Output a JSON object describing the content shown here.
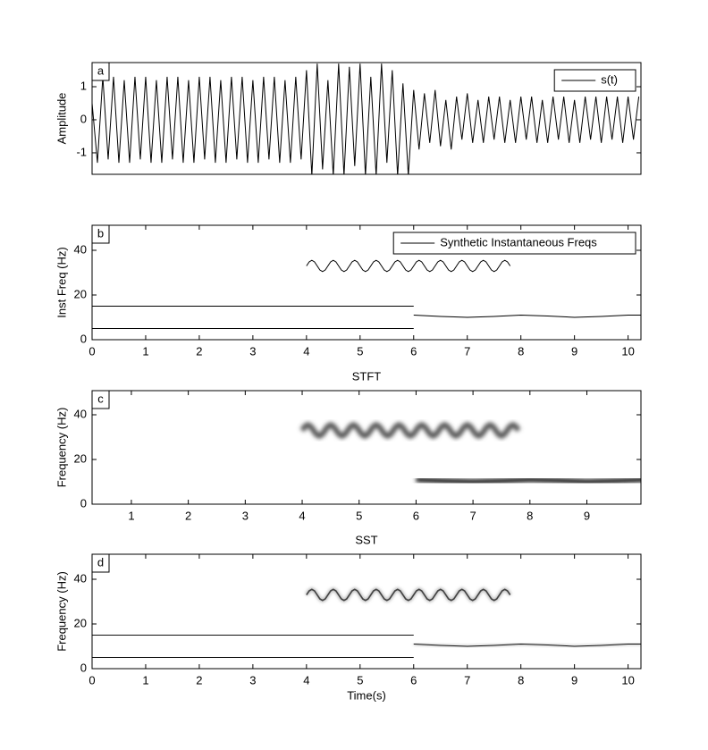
{
  "chart_data": [
    {
      "type": "line",
      "panel_label": "a",
      "ylabel": "Amplitude",
      "x": [
        0,
        0.1,
        0.2,
        0.3,
        0.4,
        0.5,
        0.6,
        0.7,
        0.8,
        0.9,
        1,
        1.1,
        1.2,
        1.3,
        1.4,
        1.5,
        1.6,
        1.7,
        1.8,
        1.9,
        2,
        2.1,
        2.2,
        2.3,
        2.4,
        2.5,
        2.6,
        2.7,
        2.8,
        2.9,
        3,
        3.1,
        3.2,
        3.3,
        3.4,
        3.5,
        3.6,
        3.7,
        3.8,
        3.9,
        4,
        4.1,
        4.2,
        4.3,
        4.4,
        4.5,
        4.6,
        4.7,
        4.8,
        4.9,
        5,
        5.1,
        5.2,
        5.3,
        5.4,
        5.5,
        5.6,
        5.7,
        5.8,
        5.9,
        6,
        6.1,
        6.2,
        6.3,
        6.4,
        6.5,
        6.6,
        6.7,
        6.8,
        6.9,
        7,
        7.1,
        7.2,
        7.3,
        7.4,
        7.5,
        7.6,
        7.7,
        7.8,
        7.9,
        8,
        8.1,
        8.2,
        8.3,
        8.4,
        8.5,
        8.6,
        8.7,
        8.8,
        8.9,
        9,
        9.1,
        9.2,
        9.3,
        9.4,
        9.5,
        9.6,
        9.7,
        9.8,
        9.9,
        10,
        10.1,
        10.2
      ],
      "series": [
        {
          "name": "s(t)",
          "color": "#000000",
          "values": [
            0.5,
            -1.3,
            1.3,
            -1.2,
            1.3,
            -1.3,
            1.2,
            -1.3,
            1.3,
            -1.2,
            1.3,
            -1.3,
            1.2,
            -1.3,
            1.3,
            -1.2,
            1.3,
            -1.3,
            1.2,
            -1.3,
            1.3,
            -1.2,
            1.3,
            -1.3,
            1.2,
            -1.3,
            1.3,
            -1.2,
            1.3,
            -1.3,
            1.2,
            -1.3,
            1.3,
            -1.2,
            1.3,
            -1.3,
            1.2,
            -1.3,
            1.3,
            -1.2,
            1.5,
            -1.7,
            1.7,
            -1.5,
            1.2,
            -1.7,
            1.7,
            -1.7,
            1.6,
            -1.4,
            1.7,
            -1.7,
            1.3,
            -1.7,
            1.7,
            -1.3,
            1.5,
            -1.7,
            1.1,
            -1.7,
            0.9,
            -0.9,
            0.8,
            -0.7,
            0.9,
            -0.8,
            0.6,
            -0.9,
            0.7,
            -0.6,
            0.8,
            -0.7,
            0.6,
            -0.7,
            0.7,
            -0.6,
            0.7,
            -0.7,
            0.6,
            -0.7,
            0.7,
            -0.6,
            0.7,
            -0.7,
            0.6,
            -0.7,
            0.7,
            -0.6,
            0.7,
            -0.7,
            0.6,
            -0.7,
            0.7,
            -0.6,
            0.7,
            -0.7,
            0.7,
            -0.6,
            0.7,
            -0.7,
            0.7,
            -0.6,
            0.7
          ]
        }
      ],
      "xlim": [
        0,
        10.24
      ],
      "ylim": [
        -1.65,
        1.73
      ],
      "yticks": [
        -1,
        0,
        1
      ],
      "legend": "upper right"
    },
    {
      "type": "line",
      "panel_label": "b",
      "ylabel": "Inst Freq (Hz)",
      "series": [
        {
          "name": "Synthetic Instantaneous Freqs",
          "color": "#000000",
          "x": [
            0,
            6
          ],
          "values": [
            15,
            15
          ]
        },
        {
          "color": "#000000",
          "x": [
            0,
            6
          ],
          "values": [
            5,
            5
          ]
        },
        {
          "color": "#000000",
          "x": [
            4,
            4.05,
            4.1,
            4.15,
            4.2,
            4.25,
            4.3,
            4.35,
            4.4,
            4.45,
            4.5,
            4.55,
            4.6,
            4.65,
            4.7,
            4.75,
            4.8,
            4.85,
            4.9,
            4.95,
            5,
            5.05,
            5.1,
            5.15,
            5.2,
            5.25,
            5.3,
            5.35,
            5.4,
            5.45,
            5.5,
            5.55,
            5.6,
            5.65,
            5.7,
            5.75,
            5.8,
            5.85,
            5.9,
            5.95,
            6,
            6.05,
            6.1,
            6.15,
            6.2,
            6.25,
            6.3,
            6.35,
            6.4,
            6.45,
            6.5,
            6.55,
            6.6,
            6.65,
            6.7,
            6.75,
            6.8,
            6.85,
            6.9,
            6.95,
            7,
            7.05,
            7.1,
            7.15,
            7.2,
            7.25,
            7.3,
            7.35,
            7.4,
            7.45,
            7.5,
            7.55,
            7.6,
            7.65,
            7.7,
            7.75,
            7.8
          ],
          "values": [
            33,
            34.8,
            35.5,
            34.8,
            33,
            31.2,
            30.5,
            31.2,
            33,
            34.8,
            35.5,
            34.8,
            33,
            31.2,
            30.5,
            31.2,
            33,
            34.8,
            35.5,
            34.8,
            33,
            31.2,
            30.5,
            31.2,
            33,
            34.8,
            35.5,
            34.8,
            33,
            31.2,
            30.5,
            31.2,
            33,
            34.8,
            35.5,
            34.8,
            33,
            31.2,
            30.5,
            31.2,
            33,
            34.8,
            35.5,
            34.8,
            33,
            31.2,
            30.5,
            31.2,
            33,
            34.8,
            35.5,
            34.8,
            33,
            31.2,
            30.5,
            31.2,
            33,
            34.8,
            35.5,
            34.8,
            33,
            31.2,
            30.5,
            31.2,
            33,
            34.8,
            35.5,
            34.8,
            33,
            31.2,
            30.5,
            31.2,
            33,
            34.8,
            35.5,
            34.8,
            33
          ]
        },
        {
          "color": "#000000",
          "x": [
            6,
            6.5,
            7,
            7.5,
            8,
            8.5,
            9,
            9.5,
            10,
            10.24
          ],
          "values": [
            11,
            10.4,
            10,
            10.4,
            11,
            10.6,
            10,
            10.4,
            11,
            11
          ]
        }
      ],
      "xlim": [
        0,
        10.24
      ],
      "ylim": [
        0,
        51.2
      ],
      "xticks": [
        0,
        1,
        2,
        3,
        4,
        5,
        6,
        7,
        8,
        9,
        10
      ],
      "yticks": [
        0,
        20,
        40
      ],
      "legend": "upper right"
    },
    {
      "type": "spectrogram",
      "title": "STFT",
      "panel_label": "c",
      "ylabel": "Frequency (Hz)",
      "xlim": [
        0.31,
        9.95
      ],
      "ylim": [
        0,
        50.8
      ],
      "xticks": [
        1,
        2,
        3,
        4,
        5,
        6,
        7,
        8,
        9
      ],
      "yticks": [
        0,
        20,
        40
      ]
    },
    {
      "type": "spectrogram",
      "title": "SST",
      "panel_label": "d",
      "ylabel": "Frequency (Hz)",
      "xlabel": "Time(s)",
      "xlim": [
        0,
        10.24
      ],
      "ylim": [
        0,
        51.2
      ],
      "xticks": [
        0,
        1,
        2,
        3,
        4,
        5,
        6,
        7,
        8,
        9,
        10
      ],
      "yticks": [
        0,
        20,
        40
      ]
    }
  ]
}
